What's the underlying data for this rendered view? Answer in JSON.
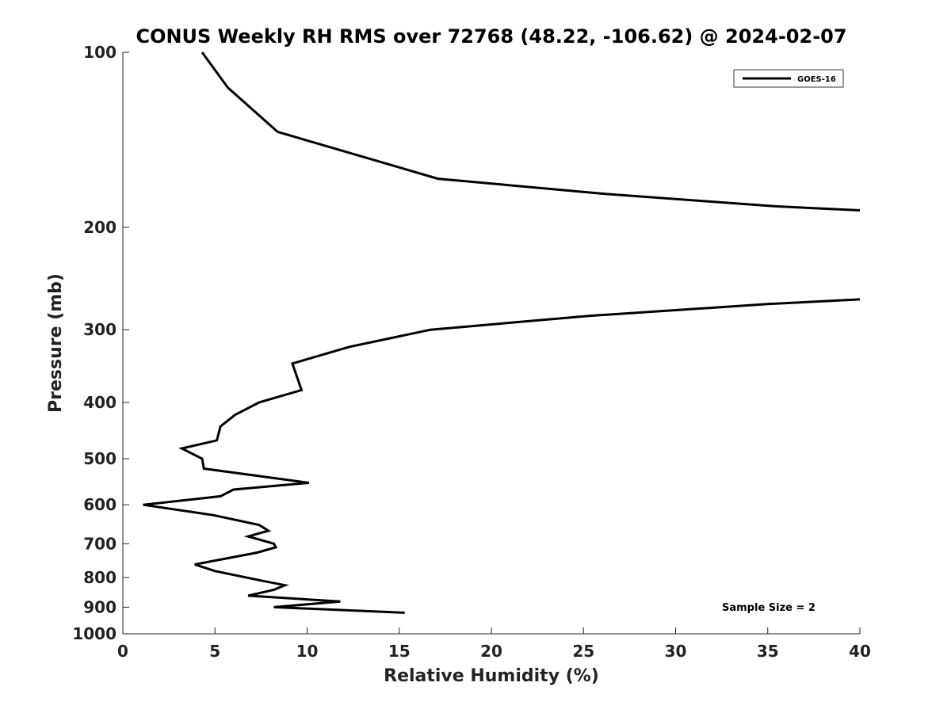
{
  "chart_data": {
    "type": "line",
    "title": "CONUS Weekly RH RMS over 72768 (48.22, -106.62) @ 2024-02-07",
    "xlabel": "Relative Humidity (%)",
    "ylabel": "Pressure (mb)",
    "xlim": [
      0,
      40
    ],
    "ylim": [
      1000,
      100
    ],
    "y_scale": "log",
    "x_ticks": [
      0,
      5,
      10,
      15,
      20,
      25,
      30,
      35,
      40
    ],
    "y_ticks": [
      100,
      200,
      300,
      400,
      500,
      600,
      700,
      800,
      900,
      1000
    ],
    "grid": false,
    "legend_position": "top-right",
    "annotation": "Sample Size = 2",
    "series": [
      {
        "name": "GOES-16",
        "color": "#000000",
        "segments": [
          [
            [
              4.3,
              100
            ],
            [
              5.7,
              115
            ],
            [
              8.4,
              137
            ],
            [
              17.1,
              165
            ],
            [
              26.0,
              175
            ],
            [
              35.4,
              184
            ],
            [
              40.0,
              187
            ]
          ],
          [
            [
              40.0,
              266
            ],
            [
              35.0,
              271
            ],
            [
              25.3,
              284
            ],
            [
              16.7,
              300
            ],
            [
              12.3,
              321
            ],
            [
              9.2,
              343
            ],
            [
              9.7,
              381
            ],
            [
              7.4,
              400
            ],
            [
              6.1,
              420
            ],
            [
              5.3,
              440
            ],
            [
              5.1,
              465
            ],
            [
              3.2,
              480
            ],
            [
              4.3,
              500
            ],
            [
              4.4,
              520
            ],
            [
              10.1,
              550
            ],
            [
              6.0,
              565
            ],
            [
              5.3,
              580
            ],
            [
              1.1,
              600
            ],
            [
              4.9,
              625
            ],
            [
              7.4,
              650
            ],
            [
              7.9,
              665
            ],
            [
              6.8,
              680
            ],
            [
              8.2,
              700
            ],
            [
              8.3,
              710
            ],
            [
              7.3,
              725
            ],
            [
              3.9,
              760
            ],
            [
              5.0,
              780
            ],
            [
              7.5,
              810
            ],
            [
              8.8,
              825
            ],
            [
              8.2,
              840
            ],
            [
              6.8,
              860
            ],
            [
              11.8,
              880
            ],
            [
              8.2,
              900
            ],
            [
              15.3,
              920
            ]
          ]
        ]
      }
    ]
  }
}
